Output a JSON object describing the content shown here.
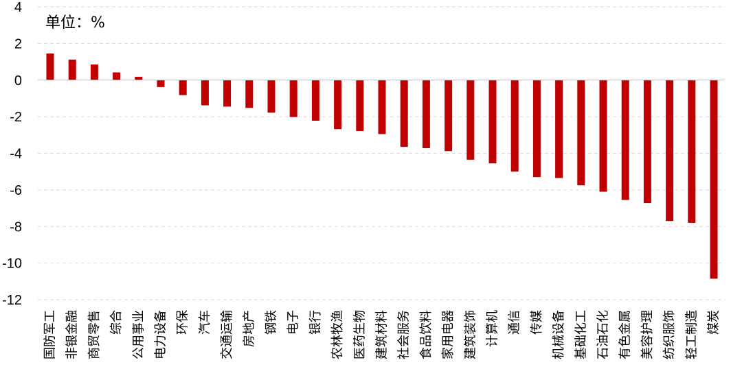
{
  "chart_data": {
    "type": "bar",
    "title": "",
    "unit_label": "单位：%",
    "xlabel": "",
    "ylabel": "",
    "ylim": [
      -12,
      4
    ],
    "yticks": [
      4,
      2,
      0,
      -2,
      -4,
      -6,
      -8,
      -10,
      -12
    ],
    "grid": true,
    "bar_color": "#c00000",
    "categories": [
      "国防军工",
      "非银金融",
      "商贸零售",
      "综合",
      "公用事业",
      "电力设备",
      "环保",
      "汽车",
      "交通运输",
      "房地产",
      "钢铁",
      "电子",
      "银行",
      "农林牧渔",
      "医药生物",
      "建筑材料",
      "社会服务",
      "食品饮料",
      "家用电器",
      "建筑装饰",
      "计算机",
      "通信",
      "传媒",
      "机械设备",
      "基础化工",
      "石油石化",
      "有色金属",
      "美容护理",
      "纺织服饰",
      "轻工制造",
      "煤炭"
    ],
    "values": [
      1.45,
      1.12,
      0.85,
      0.42,
      0.18,
      -0.38,
      -0.82,
      -1.38,
      -1.45,
      -1.52,
      -1.78,
      -2.02,
      -2.22,
      -2.68,
      -2.78,
      -2.95,
      -3.65,
      -3.72,
      -3.88,
      -4.35,
      -4.55,
      -5.0,
      -5.3,
      -5.35,
      -5.75,
      -6.1,
      -6.55,
      -6.72,
      -7.7,
      -7.8,
      -10.85
    ]
  }
}
